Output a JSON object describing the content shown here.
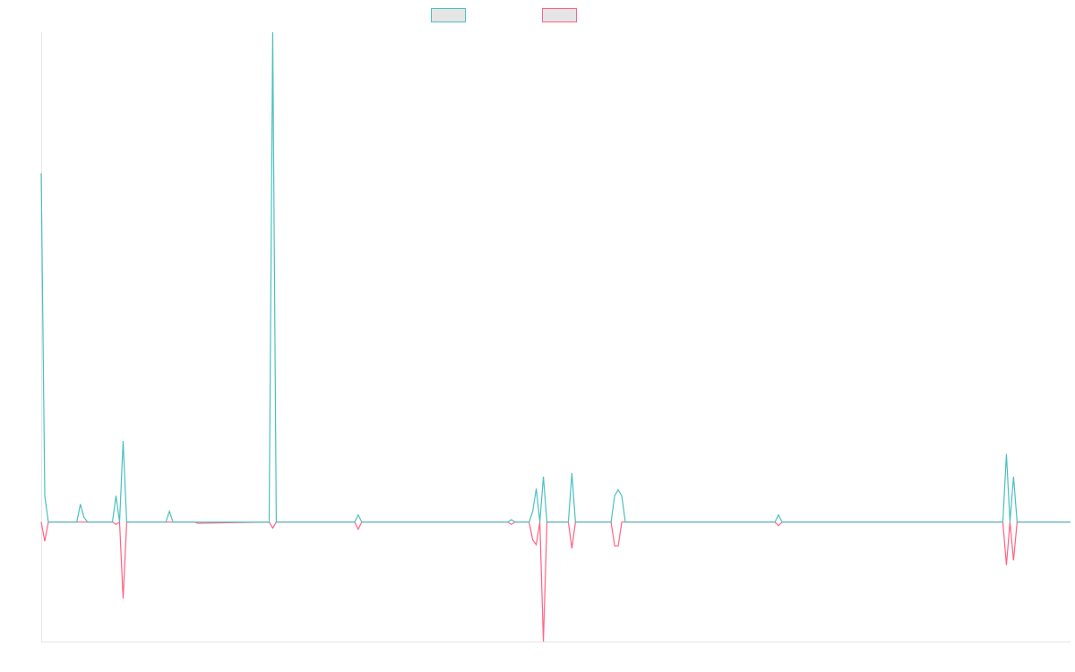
{
  "chart_data": {
    "type": "line",
    "title": "",
    "xlabel": "",
    "ylabel": "",
    "grid": false,
    "legend_position": "top-center",
    "ylim": [
      -100,
      410
    ],
    "xlim": [
      0,
      289
    ],
    "series": [
      {
        "name": "",
        "color": "#4bc0c0",
        "x": [
          0,
          1,
          2,
          3,
          10,
          11,
          12,
          13,
          20,
          21,
          22,
          23,
          24,
          35,
          36,
          37,
          43,
          44,
          64,
          65,
          66,
          88,
          89,
          90,
          131,
          132,
          133,
          137,
          138,
          139,
          140,
          141,
          142,
          143,
          148,
          149,
          150,
          160,
          161,
          162,
          163,
          164,
          165,
          206,
          207,
          208,
          270,
          271,
          272,
          273,
          274,
          275,
          289
        ],
        "values": [
          292,
          22,
          0,
          0,
          0,
          15,
          4,
          0,
          0,
          22,
          0,
          68,
          0,
          0,
          9,
          0,
          0,
          0,
          0,
          410,
          0,
          0,
          6,
          0,
          0,
          2,
          0,
          0,
          9,
          28,
          0,
          38,
          0,
          0,
          0,
          41,
          0,
          0,
          22,
          27,
          22,
          0,
          0,
          0,
          6,
          0,
          0,
          57,
          0,
          38,
          0,
          0,
          0
        ]
      },
      {
        "name": "",
        "color": "#ff6384",
        "x": [
          0,
          1,
          2,
          3,
          10,
          11,
          12,
          13,
          20,
          21,
          22,
          23,
          24,
          35,
          36,
          37,
          43,
          44,
          64,
          65,
          66,
          88,
          89,
          90,
          131,
          132,
          133,
          137,
          138,
          139,
          140,
          141,
          142,
          143,
          148,
          149,
          150,
          160,
          161,
          162,
          163,
          164,
          165,
          206,
          207,
          208,
          270,
          271,
          272,
          273,
          274,
          275,
          289
        ],
        "values": [
          0,
          -16,
          0,
          0,
          0,
          0,
          0,
          0,
          0,
          -2,
          0,
          -64,
          0,
          0,
          0,
          0,
          0,
          -1,
          0,
          -5,
          0,
          0,
          -6,
          0,
          0,
          -2,
          0,
          0,
          -15,
          -19,
          0,
          -100,
          0,
          0,
          0,
          -22,
          0,
          0,
          -20,
          -20,
          0,
          0,
          0,
          0,
          -3,
          0,
          0,
          -36,
          0,
          -32,
          0,
          0,
          0
        ]
      }
    ]
  }
}
